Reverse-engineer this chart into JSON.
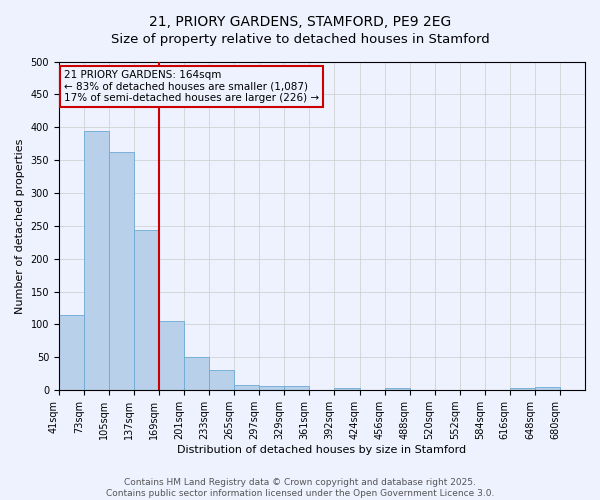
{
  "title_line1": "21, PRIORY GARDENS, STAMFORD, PE9 2EG",
  "title_line2": "Size of property relative to detached houses in Stamford",
  "xlabel": "Distribution of detached houses by size in Stamford",
  "ylabel": "Number of detached properties",
  "bin_labels": [
    "41sqm",
    "73sqm",
    "105sqm",
    "137sqm",
    "169sqm",
    "201sqm",
    "233sqm",
    "265sqm",
    "297sqm",
    "329sqm",
    "361sqm",
    "392sqm",
    "424sqm",
    "456sqm",
    "488sqm",
    "520sqm",
    "552sqm",
    "584sqm",
    "616sqm",
    "648sqm",
    "680sqm"
  ],
  "bar_values": [
    115,
    395,
    363,
    243,
    105,
    50,
    30,
    8,
    6,
    6,
    0,
    3,
    0,
    3,
    0,
    0,
    0,
    0,
    3,
    5,
    0
  ],
  "bar_color": "#b8d0ea",
  "bar_edge_color": "#6aaad4",
  "vline_color": "#cc0000",
  "annotation_line1": "21 PRIORY GARDENS: 164sqm",
  "annotation_line2": "← 83% of detached houses are smaller (1,087)",
  "annotation_line3": "17% of semi-detached houses are larger (226) →",
  "annotation_box_color": "#cc0000",
  "ylim": [
    0,
    500
  ],
  "grid_color": "#cccccc",
  "background_color": "#eef2ff",
  "footer_line1": "Contains HM Land Registry data © Crown copyright and database right 2025.",
  "footer_line2": "Contains public sector information licensed under the Open Government Licence 3.0.",
  "title_fontsize": 10,
  "axis_label_fontsize": 8,
  "tick_fontsize": 7,
  "annotation_fontsize": 7.5,
  "footer_fontsize": 6.5
}
